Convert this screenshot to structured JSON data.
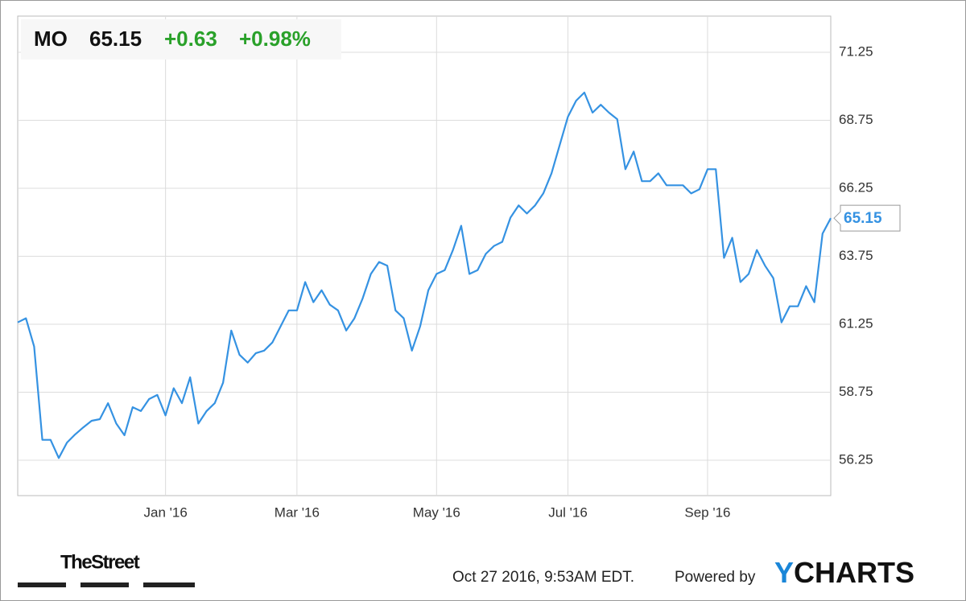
{
  "chart_data": {
    "type": "line",
    "ticker": "MO",
    "change": "+0.63",
    "change_pct": "+0.98%",
    "source": "Oct 27 2016, 9:53AM EDT.",
    "powered_by": "Powered by",
    "brand": [
      "Y",
      "CHARTS"
    ],
    "logo": "TheStreet",
    "categories": [
      null,
      null,
      null,
      null,
      null,
      null,
      null,
      null,
      null,
      null,
      null,
      null,
      null,
      null,
      null,
      null,
      null,
      null,
      "Jan '16",
      null,
      null,
      null,
      null,
      null,
      null,
      null,
      null,
      null,
      null,
      null,
      null,
      null,
      null,
      null,
      "Mar '16",
      null,
      null,
      null,
      null,
      null,
      null,
      null,
      null,
      null,
      null,
      null,
      null,
      null,
      null,
      null,
      null,
      "May '16",
      null,
      null,
      null,
      null,
      null,
      null,
      null,
      null,
      null,
      null,
      null,
      null,
      null,
      null,
      null,
      "Jul '16",
      null,
      null,
      null,
      null,
      null,
      null,
      null,
      null,
      null,
      null,
      null,
      null,
      null,
      null,
      null,
      null,
      "Sep '16",
      null,
      null,
      null,
      null,
      null,
      null,
      null,
      null,
      null,
      null,
      null,
      null,
      null,
      null,
      null
    ],
    "series": [
      {
        "name": "MO",
        "color": "#3592e2",
        "values": [
          61.32,
          61.47,
          60.43,
          57.0,
          57.0,
          56.33,
          56.9,
          57.2,
          57.46,
          57.7,
          57.76,
          58.35,
          57.6,
          57.17,
          58.2,
          58.06,
          58.5,
          58.65,
          57.9,
          58.9,
          58.35,
          59.3,
          57.6,
          58.06,
          58.35,
          59.1,
          61.02,
          60.13,
          59.84,
          60.19,
          60.28,
          60.58,
          61.17,
          61.76,
          61.76,
          62.8,
          62.06,
          62.5,
          61.97,
          61.76,
          61.02,
          61.47,
          62.2,
          63.1,
          63.54,
          63.4,
          61.76,
          61.47,
          60.28,
          61.17,
          62.5,
          63.1,
          63.24,
          63.98,
          64.87,
          63.1,
          63.24,
          63.84,
          64.13,
          64.28,
          65.17,
          65.62,
          65.32,
          65.62,
          66.06,
          66.8,
          67.84,
          68.88,
          69.47,
          69.77,
          69.03,
          69.32,
          69.03,
          68.79,
          66.95,
          67.6,
          66.51,
          66.51,
          66.8,
          66.36,
          66.36,
          66.36,
          66.06,
          66.21,
          66.95,
          66.95,
          63.69,
          64.43,
          62.8,
          63.1,
          63.98,
          63.4,
          62.95,
          61.32,
          61.91,
          61.91,
          62.65,
          62.06,
          64.58,
          65.15
        ]
      }
    ],
    "ylim": [
      54.95,
      72.58
    ],
    "yticks": [
      56.25,
      58.75,
      61.25,
      63.75,
      66.25,
      68.75,
      71.25
    ],
    "grid": true
  }
}
